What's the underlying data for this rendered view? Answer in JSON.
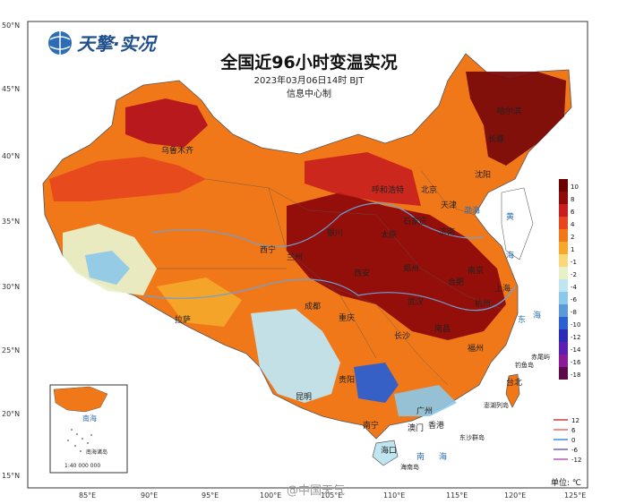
{
  "logo": {
    "text": "天擎·实况"
  },
  "title": "全国近96小时变温实况",
  "subtitle_time": "2023年03月06日14时 BJT",
  "subtitle_org": "信息中心制",
  "lon_ticks": [
    "85°E",
    "90°E",
    "95°E",
    "100°E",
    "105°E",
    "110°E",
    "115°E",
    "120°E",
    "125°E"
  ],
  "lat_ticks": [
    "50°N",
    "45°N",
    "40°N",
    "35°N",
    "30°N",
    "25°N",
    "20°N",
    "15°N"
  ],
  "legend": {
    "labels": [
      "10",
      "8",
      "6",
      "4",
      "2",
      "1",
      "-1",
      "-2",
      "-4",
      "-6",
      "-8",
      "-10",
      "-12",
      "-14",
      "-16",
      "-18"
    ],
    "colors": [
      "#6b0000",
      "#8f0a0a",
      "#c81e1e",
      "#e6461e",
      "#f07818",
      "#f5a82c",
      "#f8d878",
      "#e8f0c8",
      "#bfe6f0",
      "#8cc8e8",
      "#5a9ad8",
      "#2c5fd0",
      "#2a2ab8",
      "#5a1eb0",
      "#8c1a98",
      "#5c0a4c"
    ]
  },
  "line_legend": [
    {
      "label": "12",
      "color": "#d23c3c"
    },
    {
      "label": "6",
      "color": "#e66e6e"
    },
    {
      "label": "0",
      "color": "#3c8ce6"
    },
    {
      "label": "-6",
      "color": "#6464c8"
    },
    {
      "label": "-12",
      "color": "#b45ab4"
    }
  ],
  "unit": "单位: ℃",
  "places": {
    "urumqi": "乌鲁木齐",
    "harbin": "哈尔滨",
    "changchun": "长春",
    "shenyang": "沈阳",
    "beijing": "北京",
    "tianjin": "天津",
    "hohhot": "呼和浩特",
    "shijiazhuang": "石家庄",
    "taiyuan": "太原",
    "jinan": "济南",
    "yinchuan": "银川",
    "xining": "西宁",
    "lanzhou": "兰州",
    "xian": "西安",
    "zhengzhou": "郑州",
    "hefei": "合肥",
    "nanjing": "南京",
    "shanghai": "上海",
    "wuhan": "武汉",
    "hangzhou": "杭州",
    "lhasa": "拉萨",
    "chengdu": "成都",
    "chongqing": "重庆",
    "changsha": "长沙",
    "nanchang": "南昌",
    "fuzhou": "福州",
    "guiyang": "贵阳",
    "kunming": "昆明",
    "nanning": "南宁",
    "guangzhou": "广州",
    "hongkong": "香港",
    "macao": "澳门",
    "haikou": "海口",
    "taipei": "台北",
    "diaoyu": "钓鱼岛",
    "chiwei": "赤尾屿",
    "penghu": "澎湖列岛",
    "dongsha": "东沙群岛",
    "hainan_dao": "海南岛"
  },
  "seas": {
    "bohai": "渤海",
    "huanghai_a": "黄",
    "huanghai_b": "海",
    "donghai_a": "东",
    "donghai_b": "海",
    "nanhai_a": "南",
    "nanhai_b": "海"
  },
  "inset": {
    "island": "南海诸岛",
    "sea": "南海",
    "scale": "1:40 000 000"
  },
  "watermark": "@中国天气"
}
